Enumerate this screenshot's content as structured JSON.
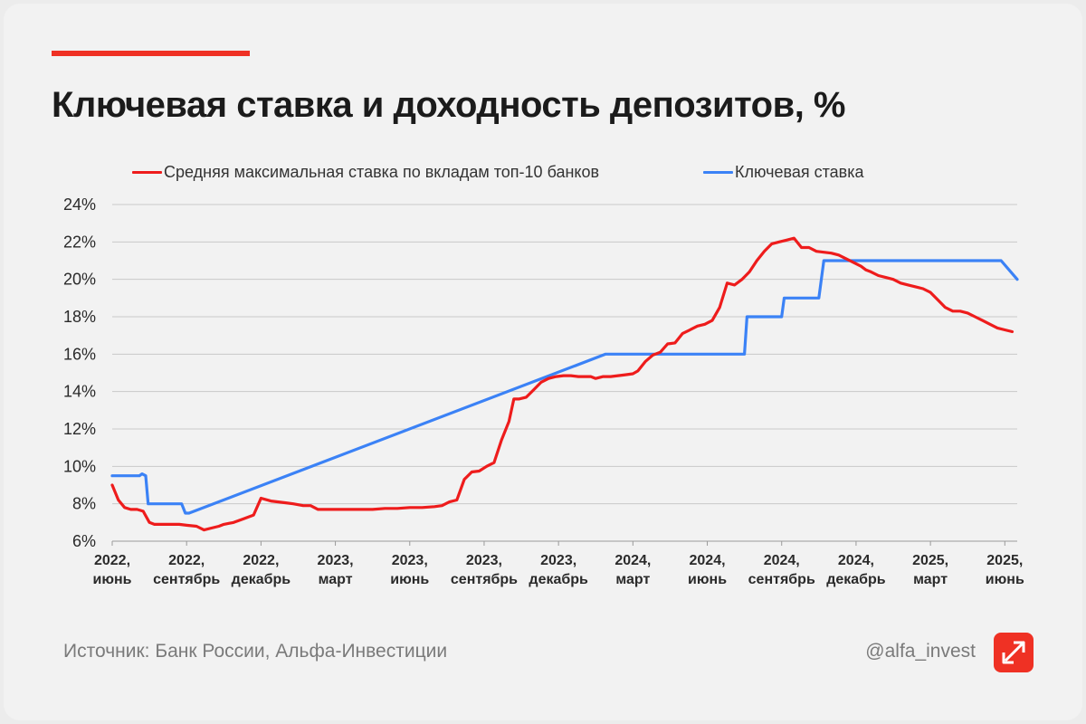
{
  "header": {
    "title": "Ключевая ставка и доходность депозитов, %"
  },
  "colors": {
    "accent": "#ef3124",
    "deposit_line": "#ee1c1c",
    "key_rate_line": "#3b82f6"
  },
  "footer": {
    "source": "Источник: Банк России, Альфа-Инвестиции",
    "handle": "@alfa_invest",
    "logo_icon": "alfa-logo-icon"
  },
  "chart_data": {
    "type": "line",
    "title": "Ключевая ставка и доходность депозитов, %",
    "xlabel": "",
    "ylabel": "",
    "ylim": [
      6,
      24
    ],
    "xlim": [
      0,
      36.5
    ],
    "grid": true,
    "legend_position": "top",
    "y_ticks": [
      6,
      8,
      10,
      12,
      14,
      16,
      18,
      20,
      22,
      24
    ],
    "y_tick_labels": [
      "6%",
      "8%",
      "10%",
      "12%",
      "14%",
      "16%",
      "18%",
      "20%",
      "22%",
      "24%"
    ],
    "x_ticks": [
      {
        "x": 0,
        "year": "2022,",
        "month": "июнь"
      },
      {
        "x": 3,
        "year": "2022,",
        "month": "сентябрь"
      },
      {
        "x": 6,
        "year": "2022,",
        "month": "декабрь"
      },
      {
        "x": 9,
        "year": "2023,",
        "month": "март"
      },
      {
        "x": 12,
        "year": "2023,",
        "month": "июнь"
      },
      {
        "x": 15,
        "year": "2023,",
        "month": "сентябрь"
      },
      {
        "x": 18,
        "year": "2023,",
        "month": "декабрь"
      },
      {
        "x": 21,
        "year": "2024,",
        "month": "март"
      },
      {
        "x": 24,
        "year": "2024,",
        "month": "июнь"
      },
      {
        "x": 27,
        "year": "2024,",
        "month": "сентябрь"
      },
      {
        "x": 30,
        "year": "2024,",
        "month": "декабрь"
      },
      {
        "x": 33,
        "year": "2025,",
        "month": "март"
      },
      {
        "x": 36,
        "year": "2025,",
        "month": "июнь"
      }
    ],
    "series": [
      {
        "name": "Средняя максимальная ставка по вкладам топ-10 банков",
        "color": "#ee1c1c",
        "x": [
          0,
          0.25,
          0.5,
          0.75,
          1.0,
          1.25,
          1.5,
          1.7,
          2.0,
          2.3,
          2.7,
          3.0,
          3.4,
          3.7,
          4.0,
          4.3,
          4.5,
          4.9,
          5.3,
          5.7,
          6.0,
          6.4,
          6.7,
          7.0,
          7.3,
          7.7,
          8.0,
          8.3,
          8.7,
          9.0,
          9.5,
          10.0,
          10.5,
          11.0,
          11.5,
          12.0,
          12.5,
          13.0,
          13.3,
          13.6,
          13.9,
          14.2,
          14.5,
          14.8,
          15.1,
          15.4,
          15.7,
          16.0,
          16.2,
          16.4,
          16.7,
          17.0,
          17.3,
          17.6,
          17.9,
          18.2,
          18.5,
          18.8,
          19.0,
          19.3,
          19.5,
          19.8,
          20.1,
          20.4,
          20.7,
          21.0,
          21.2,
          21.5,
          21.8,
          22.1,
          22.4,
          22.7,
          23.0,
          23.3,
          23.6,
          23.9,
          24.2,
          24.5,
          24.8,
          25.1,
          25.4,
          25.7,
          26.0,
          26.3,
          26.6,
          26.9,
          27.2,
          27.5,
          27.8,
          28.1,
          28.4,
          28.7,
          29.0,
          29.3,
          29.6,
          29.9,
          30.2,
          30.4,
          30.6,
          30.9,
          31.2,
          31.5,
          31.8,
          32.1,
          32.4,
          32.7,
          33.0,
          33.3,
          33.6,
          33.9,
          34.2,
          34.5,
          34.8,
          35.1,
          35.4,
          35.7,
          36.0,
          36.3
        ],
        "values": [
          9.0,
          8.2,
          7.8,
          7.7,
          7.7,
          7.6,
          7.0,
          6.9,
          6.9,
          6.9,
          6.9,
          6.85,
          6.8,
          6.6,
          6.7,
          6.8,
          6.9,
          7.0,
          7.2,
          7.4,
          8.3,
          8.15,
          8.1,
          8.05,
          8.0,
          7.9,
          7.9,
          7.7,
          7.7,
          7.7,
          7.7,
          7.7,
          7.7,
          7.75,
          7.75,
          7.8,
          7.8,
          7.85,
          7.9,
          8.1,
          8.2,
          9.3,
          9.7,
          9.75,
          10.0,
          10.2,
          11.4,
          12.4,
          13.6,
          13.6,
          13.7,
          14.1,
          14.5,
          14.7,
          14.8,
          14.85,
          14.85,
          14.8,
          14.8,
          14.8,
          14.7,
          14.8,
          14.8,
          14.85,
          14.9,
          14.95,
          15.1,
          15.6,
          15.95,
          16.1,
          16.55,
          16.6,
          17.1,
          17.3,
          17.5,
          17.6,
          17.8,
          18.5,
          19.8,
          19.7,
          20.0,
          20.4,
          21.0,
          21.5,
          21.9,
          22.0,
          22.1,
          22.2,
          21.7,
          21.7,
          21.5,
          21.45,
          21.4,
          21.3,
          21.1,
          20.9,
          20.7,
          20.5,
          20.4,
          20.2,
          20.1,
          20.0,
          19.8,
          19.7,
          19.6,
          19.5,
          19.3,
          18.9,
          18.5,
          18.3,
          18.3,
          18.2,
          18.0,
          17.8,
          17.6,
          17.4,
          17.3,
          17.2
        ],
        "values_note": "red line"
      },
      {
        "name": "Ключевая ставка",
        "color": "#3b82f6",
        "x": [
          0,
          1.1,
          1.2,
          1.35,
          1.45,
          1.6,
          2.7,
          2.8,
          2.95,
          3.1,
          19.9,
          21.0,
          22.0,
          23.0,
          24.0,
          24.2,
          24.4,
          24.55,
          24.7,
          25.4,
          25.5,
          25.6,
          25.7,
          26.9,
          27.0,
          27.1,
          27.3,
          28.4,
          28.5,
          28.7,
          28.85,
          35.5,
          35.6,
          35.75,
          35.85,
          36.5
        ],
        "values": [
          9.5,
          9.5,
          9.6,
          9.5,
          8.0,
          8.0,
          8.0,
          8.0,
          7.5,
          7.5,
          16.0,
          16.0,
          16.0,
          16.0,
          16.0,
          16.0,
          16.0,
          16.0,
          16.0,
          16.0,
          16.0,
          18.0,
          18.0,
          18.0,
          18.0,
          19.0,
          19.0,
          19.0,
          19.0,
          21.0,
          21.0,
          21.0,
          21.0,
          21.0,
          21.0,
          20.0
        ],
        "values_note": "blue line"
      }
    ]
  }
}
